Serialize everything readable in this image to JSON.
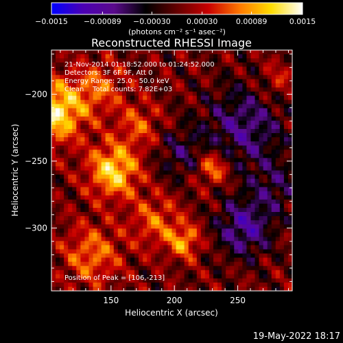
{
  "chart_data": {
    "type": "heatmap",
    "title": "Reconstructed RHESSI Image",
    "xlabel": "Heliocentric X (arcsec)",
    "ylabel": "Heliocentric Y (arcsec)",
    "xlim": [
      103,
      293
    ],
    "ylim": [
      -347,
      -167
    ],
    "x_ticks": [
      150,
      200,
      250
    ],
    "y_ticks": [
      -200,
      -250,
      -300
    ],
    "colorbar": {
      "range": [
        -0.0015,
        0.0015
      ],
      "tick_values": [
        -0.0015,
        -0.00089,
        -0.0003,
        0.0003,
        0.00089,
        0.0015
      ],
      "tick_labels": [
        "-0.0015",
        "-0.00089",
        "-0.00030",
        "0.00030",
        "0.00089",
        "0.0015"
      ],
      "unit_label": "(photons cm⁻² s⁻¹ asec⁻²)",
      "colors": [
        "#0000ff",
        "#4b00b4",
        "#5a0a8c",
        "#000000",
        "#640000",
        "#c80000",
        "#ff7800",
        "#ffdc00",
        "#ffffff"
      ]
    },
    "annotations": [
      "21-Nov-2014 01:18:52.000 to 01:24:52.000",
      "Detectors: 3F 6F 9F, Att 0",
      "Energy Range: 25.0 - 50.0 keV",
      "Clean    Total counts: 7.82E+03"
    ],
    "peak_label": "Position of Peak = [106,-213]",
    "sources": [
      {
        "x": 106,
        "y": -213,
        "amplitude": 0.00125,
        "width": 16
      },
      {
        "x": 152,
        "y": -257,
        "amplitude": 0.00115,
        "width": 14
      },
      {
        "x": 172,
        "y": -223,
        "amplitude": 0.00055,
        "width": 12
      },
      {
        "x": 230,
        "y": -255,
        "amplitude": 0.00085,
        "width": 9
      },
      {
        "x": 185,
        "y": -295,
        "amplitude": 0.0006,
        "width": 14
      },
      {
        "x": 135,
        "y": -320,
        "amplitude": 0.0007,
        "width": 16
      },
      {
        "x": 208,
        "y": -310,
        "amplitude": 0.0008,
        "width": 9
      },
      {
        "x": 140,
        "y": -195,
        "amplitude": 0.0006,
        "width": 14
      },
      {
        "x": 282,
        "y": -190,
        "amplitude": 0.0004,
        "width": 10
      },
      {
        "x": 255,
        "y": -300,
        "amplitude": -0.00085,
        "width": 15
      },
      {
        "x": 255,
        "y": -225,
        "amplitude": -0.0007,
        "width": 22
      },
      {
        "x": 205,
        "y": -245,
        "amplitude": -0.00045,
        "width": 14
      },
      {
        "x": 280,
        "y": -270,
        "amplitude": -0.00045,
        "width": 14
      }
    ]
  },
  "footer": {
    "date_stamp": "19-May-2022 18:17"
  }
}
